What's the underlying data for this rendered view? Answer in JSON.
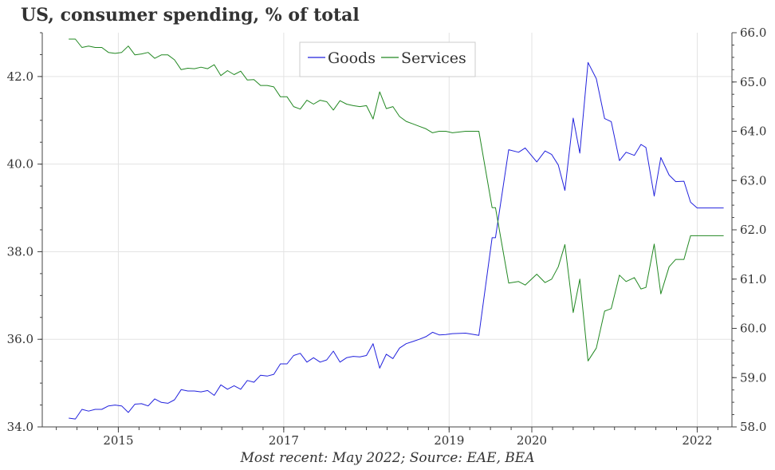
{
  "chart_data": {
    "type": "line",
    "title": "US, consumer spending, % of total",
    "footnote": "Most recent: May 2022; Source: EAE, BEA",
    "x_axis": {
      "min": 2014.08,
      "max": 2022.42,
      "ticks": [
        {
          "value": 2015.0,
          "label": "2015"
        },
        {
          "value": 2017.0,
          "label": "2017"
        },
        {
          "value": 2019.0,
          "label": "2019"
        },
        {
          "value": 2020.0,
          "label": "2020"
        },
        {
          "value": 2022.0,
          "label": "2022"
        }
      ]
    },
    "y_left": {
      "min": 34.0,
      "max": 43.0,
      "ticks": [
        "34.0",
        "36.0",
        "38.0",
        "40.0",
        "42.0"
      ]
    },
    "y_right": {
      "min": 58.0,
      "max": 66.0,
      "ticks": [
        "58.0",
        "59.0",
        "60.0",
        "61.0",
        "62.0",
        "63.0",
        "64.0",
        "65.0",
        "66.0"
      ]
    },
    "grid": true,
    "legend_position": "top-center",
    "series": [
      {
        "name": "Goods",
        "axis": "left",
        "color": "#2222dd",
        "x": [
          2014.4,
          2014.48,
          2014.56,
          2014.64,
          2014.72,
          2014.8,
          2014.88,
          2014.96,
          2015.04,
          2015.12,
          2015.2,
          2015.28,
          2015.36,
          2015.44,
          2015.52,
          2015.6,
          2015.68,
          2015.76,
          2015.84,
          2015.92,
          2016.0,
          2016.08,
          2016.16,
          2016.24,
          2016.32,
          2016.4,
          2016.48,
          2016.56,
          2016.64,
          2016.72,
          2016.8,
          2016.88,
          2016.96,
          2017.04,
          2017.12,
          2017.2,
          2017.28,
          2017.36,
          2017.44,
          2017.52,
          2017.6,
          2017.68,
          2017.76,
          2017.84,
          2017.92,
          2018.0,
          2018.08,
          2018.16,
          2018.24,
          2018.32,
          2018.4,
          2018.48,
          2018.56,
          2018.64,
          2018.72,
          2018.8,
          2018.88,
          2018.96,
          2019.04,
          2019.2,
          2019.36,
          2019.52,
          2019.56,
          2019.72,
          2019.84,
          2019.92,
          2020.06,
          2020.16,
          2020.24,
          2020.32,
          2020.4,
          2020.5,
          2020.58,
          2020.68,
          2020.78,
          2020.88,
          2020.96,
          2021.06,
          2021.14,
          2021.24,
          2021.32,
          2021.38,
          2021.48,
          2021.56,
          2021.66,
          2021.74,
          2021.84,
          2021.92,
          2022.0,
          2022.08,
          2022.16,
          2022.24,
          2022.32
        ],
        "y": [
          34.2,
          34.18,
          34.4,
          34.36,
          34.4,
          34.4,
          34.48,
          34.5,
          34.48,
          34.33,
          34.52,
          34.53,
          34.48,
          34.64,
          34.56,
          34.54,
          34.62,
          34.85,
          34.82,
          34.82,
          34.8,
          34.83,
          34.72,
          34.96,
          34.86,
          34.94,
          34.86,
          35.06,
          35.02,
          35.18,
          35.16,
          35.2,
          35.44,
          35.44,
          35.63,
          35.68,
          35.48,
          35.58,
          35.48,
          35.53,
          35.73,
          35.48,
          35.58,
          35.61,
          35.6,
          35.63,
          35.9,
          35.34,
          35.66,
          35.56,
          35.8,
          35.9,
          35.95,
          36.0,
          36.06,
          36.16,
          36.1,
          36.11,
          36.13,
          36.14,
          36.09,
          38.32,
          38.32,
          40.33,
          40.27,
          40.37,
          40.05,
          40.3,
          40.22,
          39.98,
          39.4,
          41.05,
          40.25,
          42.32,
          41.95,
          41.04,
          40.97,
          40.08,
          40.27,
          40.2,
          40.45,
          40.38,
          39.27,
          40.15,
          39.75,
          39.6,
          39.61,
          39.13,
          39.0,
          39.0,
          39.0,
          39.0,
          39.0
        ]
      },
      {
        "name": "Services",
        "axis": "right",
        "color": "#228822",
        "x": [
          2014.4,
          2014.48,
          2014.56,
          2014.64,
          2014.72,
          2014.8,
          2014.88,
          2014.96,
          2015.04,
          2015.12,
          2015.2,
          2015.28,
          2015.36,
          2015.44,
          2015.52,
          2015.6,
          2015.68,
          2015.76,
          2015.84,
          2015.92,
          2016.0,
          2016.08,
          2016.16,
          2016.24,
          2016.32,
          2016.4,
          2016.48,
          2016.56,
          2016.64,
          2016.72,
          2016.8,
          2016.88,
          2016.96,
          2017.04,
          2017.12,
          2017.2,
          2017.28,
          2017.36,
          2017.44,
          2017.52,
          2017.6,
          2017.68,
          2017.76,
          2017.84,
          2017.92,
          2018.0,
          2018.08,
          2018.16,
          2018.24,
          2018.32,
          2018.4,
          2018.48,
          2018.56,
          2018.64,
          2018.72,
          2018.8,
          2018.88,
          2018.96,
          2019.04,
          2019.2,
          2019.36,
          2019.52,
          2019.56,
          2019.72,
          2019.84,
          2019.92,
          2020.06,
          2020.16,
          2020.24,
          2020.32,
          2020.4,
          2020.5,
          2020.58,
          2020.68,
          2020.78,
          2020.88,
          2020.96,
          2021.06,
          2021.14,
          2021.24,
          2021.32,
          2021.38,
          2021.48,
          2021.56,
          2021.66,
          2021.74,
          2021.84,
          2021.92,
          2022.0,
          2022.08,
          2022.16,
          2022.24,
          2022.32
        ],
        "y": [
          65.87,
          65.87,
          65.7,
          65.73,
          65.7,
          65.7,
          65.6,
          65.58,
          65.6,
          65.73,
          65.55,
          65.57,
          65.6,
          65.48,
          65.55,
          65.55,
          65.45,
          65.25,
          65.28,
          65.27,
          65.3,
          65.27,
          65.35,
          65.13,
          65.23,
          65.15,
          65.22,
          65.04,
          65.05,
          64.93,
          64.93,
          64.9,
          64.7,
          64.7,
          64.5,
          64.45,
          64.63,
          64.55,
          64.63,
          64.6,
          64.43,
          64.62,
          64.55,
          64.52,
          64.5,
          64.52,
          64.25,
          64.8,
          64.46,
          64.5,
          64.3,
          64.2,
          64.15,
          64.1,
          64.05,
          63.97,
          64.0,
          64.0,
          63.97,
          64.0,
          64.0,
          62.45,
          62.45,
          60.92,
          60.95,
          60.88,
          61.1,
          60.93,
          61.0,
          61.25,
          61.7,
          60.32,
          61.0,
          59.34,
          59.6,
          60.35,
          60.4,
          61.08,
          60.95,
          61.03,
          60.8,
          60.83,
          61.71,
          60.7,
          61.25,
          61.4,
          61.4,
          61.88,
          61.88,
          61.88,
          61.88,
          61.88,
          61.88
        ]
      }
    ]
  }
}
